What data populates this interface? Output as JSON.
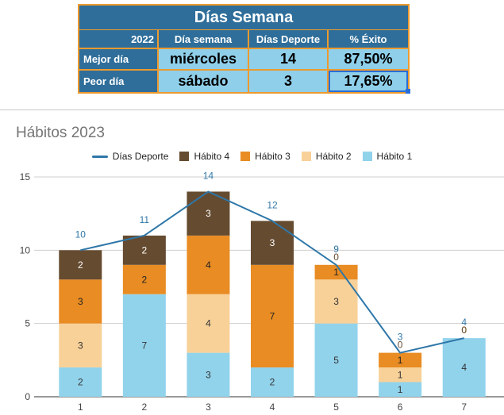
{
  "summary": {
    "title": "Días Semana",
    "header": [
      "2022",
      "Día semana",
      "Días Deporte",
      "% Éxito"
    ],
    "rows": [
      {
        "label": "Mejor día",
        "day": "miércoles",
        "days": "14",
        "pct": "87,50%"
      },
      {
        "label": "Peor día",
        "day": "sábado",
        "days": "3",
        "pct": "17,65%"
      }
    ]
  },
  "chart_data": {
    "type": "bar",
    "title": "Hábitos 2023",
    "categories": [
      "1",
      "2",
      "3",
      "4",
      "5",
      "6",
      "7"
    ],
    "ylim": [
      0,
      15
    ],
    "yticks": [
      "0",
      "5",
      "10",
      "15"
    ],
    "legend": [
      "Días Deporte",
      "Hábito 4",
      "Hábito 3",
      "Hábito 2",
      "Hábito 1"
    ],
    "colors": {
      "Días Deporte": "#2f77a8",
      "Hábito 4": "#654b30",
      "Hábito 3": "#e98c23",
      "Hábito 2": "#f8d199",
      "Hábito 1": "#92d3ec"
    },
    "series": [
      {
        "name": "Hábito 1",
        "values": [
          2,
          7,
          3,
          2,
          5,
          1,
          4
        ]
      },
      {
        "name": "Hábito 2",
        "values": [
          3,
          0,
          4,
          0,
          3,
          1,
          0
        ]
      },
      {
        "name": "Hábito 3",
        "values": [
          3,
          2,
          4,
          7,
          1,
          1,
          0
        ]
      },
      {
        "name": "Hábito 4",
        "values": [
          2,
          2,
          3,
          3,
          0,
          0,
          0
        ]
      }
    ],
    "line": {
      "name": "Días Deporte",
      "values": [
        10,
        11,
        14,
        12,
        9,
        3,
        4
      ]
    }
  }
}
